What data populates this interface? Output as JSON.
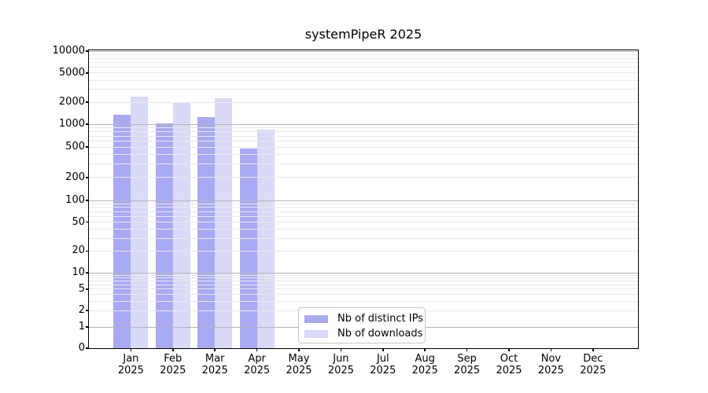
{
  "chart_data": {
    "type": "bar",
    "title": "systemPipeR 2025",
    "categories": [
      "Jan 2025",
      "Feb 2025",
      "Mar 2025",
      "Apr 2025",
      "May 2025",
      "Jun 2025",
      "Jul 2025",
      "Aug 2025",
      "Sep 2025",
      "Oct 2025",
      "Nov 2025",
      "Dec 2025"
    ],
    "series": [
      {
        "name": "Nb of distinct IPs",
        "color": "#a9a9f4",
        "values": [
          1350,
          1030,
          1240,
          480,
          null,
          null,
          null,
          null,
          null,
          null,
          null,
          null
        ]
      },
      {
        "name": "Nb of downloads",
        "color": "#d9d9f8",
        "values": [
          2350,
          1980,
          2280,
          850,
          null,
          null,
          null,
          null,
          null,
          null,
          null,
          null
        ]
      }
    ],
    "yscale": "log",
    "ylim": [
      0,
      10000
    ],
    "yticks": [
      0,
      1,
      2,
      5,
      10,
      20,
      50,
      100,
      200,
      500,
      1000,
      2000,
      5000,
      10000
    ],
    "grid": true,
    "legend_position": "lower center"
  },
  "colors": {
    "background": "#ffffff",
    "axis": "#000000",
    "major_grid": "#b5b5b5",
    "minor_grid": "#e9e9e9",
    "text": "#000000"
  }
}
